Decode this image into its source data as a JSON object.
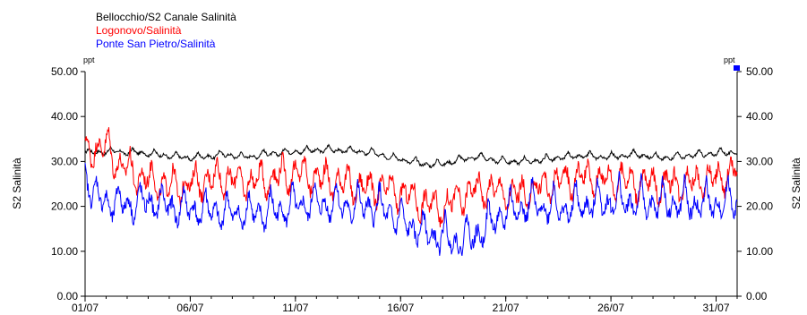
{
  "chart_data": {
    "type": "line",
    "title": "",
    "ylabel_left": "S2 Salinità",
    "ylabel_right": "S2 Salinità",
    "unit_left": "ppt",
    "unit_right": "ppt",
    "ylim": [
      0,
      50
    ],
    "yticks": [
      "0.00",
      "10.00",
      "20.00",
      "30.00",
      "40.00",
      "50.00"
    ],
    "xlim_days": [
      1,
      32
    ],
    "xticks": [
      {
        "day": 1,
        "label": "01/07"
      },
      {
        "day": 6,
        "label": "06/07"
      },
      {
        "day": 11,
        "label": "11/07"
      },
      {
        "day": 16,
        "label": "16/07"
      },
      {
        "day": 21,
        "label": "21/07"
      },
      {
        "day": 26,
        "label": "26/07"
      },
      {
        "day": 31,
        "label": "31/07"
      }
    ],
    "legend_position": "top-left",
    "grid": false,
    "series": [
      {
        "name": "Bellocchio/S2 Canale Salinità",
        "color": "#000000",
        "key": "bellocchio",
        "x": [
          1,
          1.5,
          2,
          2.5,
          3,
          3.5,
          4,
          4.5,
          5,
          5.5,
          6,
          6.5,
          7,
          7.5,
          8,
          8.5,
          9,
          9.5,
          10,
          10.5,
          11,
          11.5,
          12,
          12.5,
          13,
          13.5,
          14,
          14.5,
          15,
          15.5,
          16,
          16.5,
          17,
          17.5,
          18,
          18.5,
          19,
          19.5,
          20,
          20.5,
          21,
          21.5,
          22,
          22.5,
          23,
          23.5,
          24,
          24.5,
          25,
          25.5,
          26,
          26.5,
          27,
          27.5,
          28,
          28.5,
          29,
          29.5,
          30,
          30.5,
          31,
          31.5,
          32
        ],
        "y": [
          32,
          32,
          32.2,
          32.2,
          32,
          32,
          31.8,
          31.5,
          31.2,
          31,
          30.8,
          31,
          31.2,
          31.5,
          31.4,
          31,
          31.2,
          31.6,
          31.8,
          32,
          32.2,
          32.4,
          32.5,
          32.6,
          32.5,
          32.4,
          32.2,
          32,
          31.5,
          31,
          30.5,
          30,
          29.5,
          29.3,
          29.5,
          30,
          30.5,
          31,
          30.8,
          30.2,
          30,
          30,
          30,
          30.2,
          30.5,
          30.8,
          31,
          31.2,
          31.2,
          31,
          31,
          31.2,
          31.5,
          31.4,
          31,
          30.8,
          31,
          31.2,
          31.4,
          31.6,
          31.8,
          32,
          32
        ]
      },
      {
        "name": "Logonovo/Salinità",
        "color": "#ff0000",
        "key": "logonovo",
        "x": [
          1,
          1.5,
          2,
          2.5,
          3,
          3.5,
          4,
          4.5,
          5,
          5.5,
          6,
          6.5,
          7,
          7.5,
          8,
          8.5,
          9,
          9.5,
          10,
          10.5,
          11,
          11.5,
          12,
          12.5,
          13,
          13.5,
          14,
          14.5,
          15,
          15.5,
          16,
          16.5,
          17,
          17.5,
          18,
          18.5,
          19,
          19.5,
          20,
          20.5,
          21,
          21.5,
          22,
          22.5,
          23,
          23.5,
          24,
          24.5,
          25,
          25.5,
          26,
          26.5,
          27,
          27.5,
          28,
          28.5,
          29,
          29.5,
          30,
          30.5,
          31,
          31.5,
          32
        ],
        "y": [
          31,
          33.5,
          33,
          30,
          28,
          27,
          26,
          25,
          24.5,
          24.5,
          25,
          25.5,
          26,
          26.5,
          26,
          25.5,
          25.5,
          26,
          26.5,
          27,
          27.5,
          27,
          26.5,
          26,
          25.5,
          25,
          24.5,
          24,
          24,
          23.5,
          23,
          22,
          21,
          20,
          20,
          21,
          22.5,
          23.5,
          24,
          23.5,
          23,
          22.5,
          23,
          24,
          25,
          25.5,
          26,
          26.5,
          26.5,
          26,
          26,
          26,
          25.5,
          25,
          25,
          25,
          25,
          25.5,
          25.5,
          26,
          26,
          27,
          28
        ]
      },
      {
        "name": "Ponte San Pietro/Salinità",
        "color": "#0000ff",
        "key": "ponte",
        "x": [
          1,
          1.5,
          2,
          2.5,
          3,
          3.5,
          4,
          4.5,
          5,
          5.5,
          6,
          6.5,
          7,
          7.5,
          8,
          8.5,
          9,
          9.5,
          10,
          10.5,
          11,
          11.5,
          12,
          12.5,
          13,
          13.5,
          14,
          14.5,
          15,
          15.5,
          16,
          16.5,
          17,
          17.5,
          18,
          18.5,
          19,
          19.5,
          20,
          20.5,
          21,
          21.5,
          22,
          22.5,
          23,
          23.5,
          24,
          24.5,
          25,
          25.5,
          26,
          26.5,
          27,
          27.5,
          28,
          28.5,
          29,
          29.5,
          30,
          30.5,
          31,
          31.5,
          32
        ],
        "y": [
          27,
          22,
          21,
          20.5,
          20.5,
          20.5,
          21,
          20.5,
          20,
          19.5,
          19.5,
          19,
          19,
          18.5,
          18.5,
          18.5,
          18.5,
          18.5,
          19,
          19.5,
          20,
          20.5,
          20.5,
          20.5,
          20.5,
          20,
          20,
          20,
          19.5,
          18.5,
          16.5,
          15.5,
          14.5,
          13.5,
          13,
          12.5,
          12.5,
          13.5,
          15,
          17,
          18.5,
          19.5,
          20,
          20,
          20,
          19.5,
          19.5,
          20,
          20.5,
          21,
          21,
          21,
          21,
          20.5,
          20.5,
          20.5,
          20.5,
          20.5,
          20.5,
          20.5,
          20.5,
          21,
          21
        ]
      }
    ]
  }
}
